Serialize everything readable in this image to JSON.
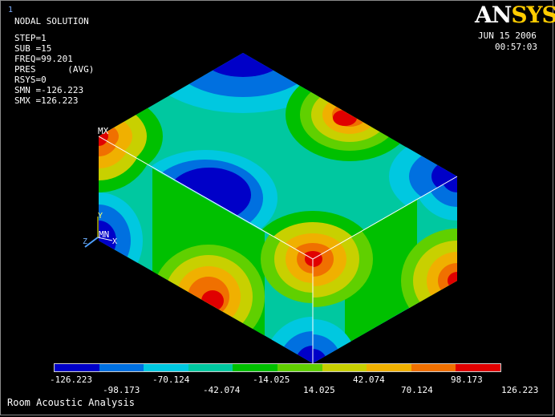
{
  "window_number": "1",
  "info": {
    "title": "NODAL SOLUTION",
    "lines": [
      "STEP=1",
      "SUB =15",
      "FREQ=99.201",
      "PRES      (AVG)",
      "RSYS=0",
      "SMN =-126.223",
      "SMX =126.223"
    ]
  },
  "logo": {
    "part1": "AN",
    "part2": "SYS"
  },
  "date": "JUN 15 2006",
  "time": "00:57:03",
  "markers": {
    "mx": "MX",
    "mn": "MN"
  },
  "triad": {
    "x": "X",
    "y": "Y",
    "z": "Z"
  },
  "legend": {
    "colors": [
      "#0000c8",
      "#0070e0",
      "#00c8e0",
      "#00c8a0",
      "#00c000",
      "#60d000",
      "#c8d000",
      "#f0b000",
      "#f07000",
      "#e00000"
    ],
    "top_labels": [
      "-126.223",
      "-70.124",
      "-14.025",
      "42.074",
      "98.173"
    ],
    "bottom_labels": [
      "-98.173",
      "-42.074",
      "14.025",
      "70.124",
      "126.223"
    ]
  },
  "footer": "Room Acoustic Analysis"
}
